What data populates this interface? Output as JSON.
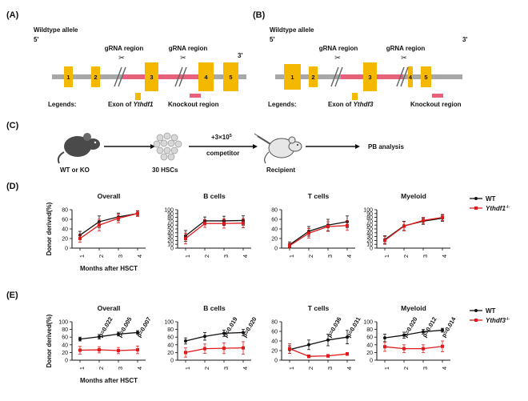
{
  "panels": {
    "A": {
      "label": "(A)",
      "allele_title": "Wildtype allele",
      "five_prime": "5'",
      "three_prime": "3'",
      "exons": [
        "1",
        "2",
        "3",
        "4",
        "5"
      ],
      "grna_labels": [
        "gRNA region",
        "gRNA region"
      ],
      "legend_label": "Legends:",
      "legend_exon_prefix": "Exon of ",
      "legend_exon_gene": "Ythdf1",
      "legend_knockout": "Knockout region"
    },
    "B": {
      "label": "(B)",
      "allele_title": "Wildtype allele",
      "five_prime": "5'",
      "three_prime": "3'",
      "exons": [
        "1",
        "2",
        "3",
        "4",
        "5"
      ],
      "grna_labels": [
        "gRNA region",
        "gRNA region"
      ],
      "legend_label": "Legends:",
      "legend_exon_prefix": "Exon of ",
      "legend_exon_gene": "Ythdf3",
      "legend_knockout": "Knockout region"
    },
    "C": {
      "label": "(C)",
      "mouse_label": "WT or KO",
      "cells_label": "30 HSCs",
      "transfer_top": "+3×10",
      "transfer_sup": "5",
      "transfer_bottom": "competitor",
      "recipient_label": "Recipient",
      "analysis_label": "PB analysis"
    },
    "D": {
      "label": "(D)"
    },
    "E": {
      "label": "(E)"
    }
  },
  "colors": {
    "exon": "#f5b800",
    "knockout": "#e8617a",
    "chromosome": "#a8a8a8",
    "wt": "#111111",
    "ko": "#e0191b"
  },
  "chart_data": [
    {
      "id": "D-overall",
      "type": "line",
      "title": "Overall",
      "ylabel": "Donor derived(%)",
      "xlabel": "Months after HSCT",
      "categories": [
        "1",
        "2",
        "3",
        "4"
      ],
      "ylim": [
        0,
        80
      ],
      "yticks": [
        "0",
        "20",
        "40",
        "60",
        "80"
      ],
      "series": [
        {
          "name": "WT",
          "values": [
            27,
            55,
            65,
            72
          ],
          "err": [
            8,
            12,
            8,
            5
          ]
        },
        {
          "name": "Ythdf1-/-",
          "values": [
            20,
            48,
            62,
            72
          ],
          "err": [
            8,
            12,
            9,
            6
          ]
        }
      ]
    },
    {
      "id": "D-bcells",
      "type": "line",
      "title": "B cells",
      "ylabel": "",
      "xlabel": "",
      "categories": [
        "1",
        "2",
        "3",
        "4"
      ],
      "ylim": [
        0,
        100
      ],
      "yticks": [
        "0",
        "10",
        "20",
        "30",
        "40",
        "50",
        "60",
        "70",
        "80",
        "90",
        "100"
      ],
      "series": [
        {
          "name": "WT",
          "values": [
            32,
            71,
            71,
            72
          ],
          "err": [
            14,
            10,
            12,
            12
          ]
        },
        {
          "name": "Ythdf1-/-",
          "values": [
            25,
            64,
            64,
            65
          ],
          "err": [
            14,
            10,
            12,
            12
          ]
        }
      ]
    },
    {
      "id": "D-tcells",
      "type": "line",
      "title": "T cells",
      "ylabel": "",
      "xlabel": "",
      "categories": [
        "1",
        "2",
        "3",
        "4"
      ],
      "ylim": [
        0,
        80
      ],
      "yticks": [
        "0",
        "20",
        "40",
        "60",
        "80"
      ],
      "series": [
        {
          "name": "WT",
          "values": [
            7,
            35,
            48,
            55
          ],
          "err": [
            6,
            10,
            12,
            12
          ]
        },
        {
          "name": "Ythdf1-/-",
          "values": [
            5,
            31,
            45,
            47
          ],
          "err": [
            5,
            10,
            10,
            10
          ]
        }
      ]
    },
    {
      "id": "D-myeloid",
      "type": "line",
      "title": "Myeloid",
      "ylabel": "",
      "xlabel": "",
      "categories": [
        "1",
        "2",
        "3",
        "4"
      ],
      "ylim": [
        0,
        100
      ],
      "yticks": [
        "0",
        "10",
        "20",
        "30",
        "40",
        "50",
        "60",
        "70",
        "80",
        "90",
        "100"
      ],
      "series": [
        {
          "name": "WT",
          "values": [
            22,
            58,
            70,
            78
          ],
          "err": [
            10,
            12,
            8,
            8
          ]
        },
        {
          "name": "Ythdf1-/-",
          "values": [
            20,
            57,
            72,
            80
          ],
          "err": [
            10,
            12,
            8,
            8
          ]
        }
      ],
      "legend": [
        {
          "prefix": "WT",
          "sup": ""
        },
        {
          "prefix": "Ythdf1",
          "sup": "-/-"
        }
      ]
    },
    {
      "id": "E-overall",
      "type": "line",
      "title": "Overall",
      "ylabel": "Donor derived(%)",
      "xlabel": "Months after HSCT",
      "categories": [
        "1",
        "2",
        "3",
        "4"
      ],
      "ylim": [
        0,
        100
      ],
      "yticks": [
        "0",
        "20",
        "40",
        "60",
        "80",
        "100"
      ],
      "series": [
        {
          "name": "WT",
          "values": [
            55,
            61,
            68,
            72
          ],
          "err": [
            5,
            6,
            5,
            5
          ]
        },
        {
          "name": "Ythdf3-/-",
          "values": [
            26,
            27,
            25,
            27
          ],
          "err": [
            10,
            8,
            8,
            10
          ]
        }
      ],
      "pvalues": [
        {
          "cat": 2,
          "text": "p=0.022"
        },
        {
          "cat": 3,
          "text": "p=0.005"
        },
        {
          "cat": 4,
          "text": "p=0.007"
        }
      ]
    },
    {
      "id": "E-bcells",
      "type": "line",
      "title": "B cells",
      "ylabel": "",
      "xlabel": "",
      "categories": [
        "1",
        "2",
        "3",
        "4"
      ],
      "ylim": [
        0,
        100
      ],
      "yticks": [
        "0",
        "20",
        "40",
        "60",
        "80",
        "100"
      ],
      "series": [
        {
          "name": "WT",
          "values": [
            50,
            62,
            70,
            72
          ],
          "err": [
            8,
            10,
            8,
            8
          ]
        },
        {
          "name": "Ythdf3-/-",
          "values": [
            20,
            30,
            31,
            32
          ],
          "err": [
            12,
            12,
            14,
            16
          ]
        }
      ],
      "pvalues": [
        {
          "cat": 3,
          "text": "p=0.019"
        },
        {
          "cat": 4,
          "text": "p=0.020"
        }
      ]
    },
    {
      "id": "E-tcells",
      "type": "line",
      "title": "T cells",
      "ylabel": "",
      "xlabel": "",
      "categories": [
        "1",
        "2",
        "3",
        "4"
      ],
      "ylim": [
        0,
        80
      ],
      "yticks": [
        "0",
        "20",
        "40",
        "60",
        "80"
      ],
      "series": [
        {
          "name": "WT",
          "values": [
            22,
            32,
            42,
            48
          ],
          "err": [
            8,
            10,
            12,
            14
          ]
        },
        {
          "name": "Ythdf3-/-",
          "values": [
            24,
            8,
            9,
            13
          ],
          "err": [
            10,
            3,
            3,
            3
          ]
        }
      ],
      "pvalues": [
        {
          "cat": 3,
          "text": "p=0.036"
        },
        {
          "cat": 4,
          "text": "p=0.031"
        }
      ]
    },
    {
      "id": "E-myeloid",
      "type": "line",
      "title": "Myeloid",
      "ylabel": "",
      "xlabel": "",
      "categories": [
        "1",
        "2",
        "3",
        "4"
      ],
      "ylim": [
        0,
        100
      ],
      "yticks": [
        "0",
        "20",
        "40",
        "60",
        "80",
        "100"
      ],
      "series": [
        {
          "name": "WT",
          "values": [
            58,
            65,
            74,
            78
          ],
          "err": [
            10,
            8,
            6,
            5
          ]
        },
        {
          "name": "Ythdf3-/-",
          "values": [
            35,
            30,
            30,
            36
          ],
          "err": [
            12,
            10,
            10,
            14
          ]
        }
      ],
      "pvalues": [
        {
          "cat": 2,
          "text": "p=0.020"
        },
        {
          "cat": 3,
          "text": "p=0.012"
        },
        {
          "cat": 4,
          "text": "p=0.014"
        }
      ],
      "legend": [
        {
          "prefix": "WT",
          "sup": ""
        },
        {
          "prefix": "Ythdf3",
          "sup": "-/-"
        }
      ]
    }
  ]
}
